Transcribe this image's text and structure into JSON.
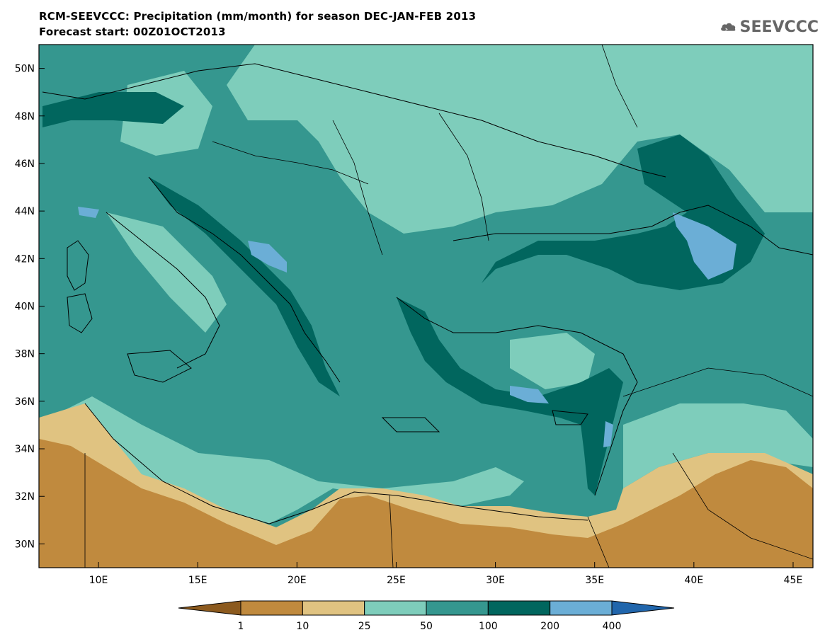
{
  "header": {
    "title_line1": "RCM-SEEVCCC: Precipitation (mm/month) for season DEC-JAN-FEB 2013",
    "title_line2": "Forecast start: 00Z01OCT2013"
  },
  "logo": {
    "text": "SEEVCCC",
    "icon": "cloud-icon"
  },
  "map": {
    "lat_labels": [
      "50N",
      "48N",
      "46N",
      "44N",
      "42N",
      "40N",
      "38N",
      "36N",
      "34N",
      "32N",
      "30N"
    ],
    "lon_labels": [
      "10E",
      "15E",
      "20E",
      "25E",
      "30E",
      "35E",
      "40E",
      "45E"
    ],
    "lat_range": [
      29,
      51
    ],
    "lon_range": [
      7,
      46
    ]
  },
  "colorbar": {
    "levels": [
      "1",
      "10",
      "25",
      "50",
      "100",
      "200",
      "400"
    ],
    "colors": [
      "#8c5a1e",
      "#c08a3e",
      "#e0c381",
      "#7ecdbb",
      "#35978f",
      "#01665e",
      "#6baed6",
      "#2166ac"
    ]
  }
}
